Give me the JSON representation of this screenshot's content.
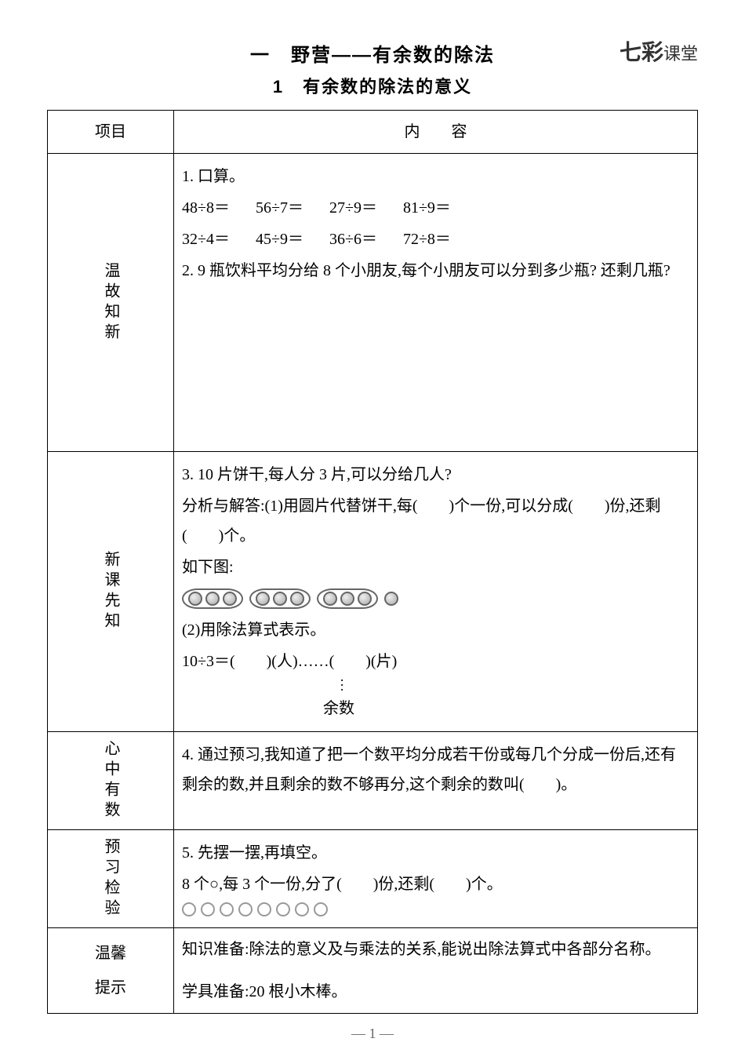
{
  "brand": {
    "prefix": "七彩",
    "suffix": "课堂"
  },
  "title_main": "一　野营——有余数的除法",
  "title_sub": "1　有余数的除法的意义",
  "header": {
    "col1": "项目",
    "col2": "内　　容"
  },
  "sections": {
    "review": {
      "label": "温故知新",
      "p1": "1. 口算。",
      "calc_row1": {
        "a": "48÷8＝",
        "b": "56÷7＝",
        "c": "27÷9＝",
        "d": "81÷9＝"
      },
      "calc_row2": {
        "a": "32÷4＝",
        "b": "45÷9＝",
        "c": "36÷6＝",
        "d": "72÷8＝"
      },
      "p2": "2. 9 瓶饮料平均分给 8 个小朋友,每个小朋友可以分到多少瓶? 还剩几瓶?"
    },
    "new": {
      "label": "新课先知",
      "p3": "3. 10 片饼干,每人分 3 片,可以分给几人?",
      "p3a": "分析与解答:(1)用圆片代替饼干,每(　　)个一份,可以分成(　　)份,还剩(　　)个。",
      "p3b": "如下图:",
      "p3c": "(2)用除法算式表示。",
      "p3d": "10÷3＝(　　)(人)……(　　)(片)",
      "yushu": "余数"
    },
    "know": {
      "label": "心中有数",
      "p4": "4. 通过预习,我知道了把一个数平均分成若干份或每几个分成一份后,还有剩余的数,并且剩余的数不够再分,这个剩余的数叫(　　)。"
    },
    "check": {
      "label": "预习检验",
      "p5": "5. 先摆一摆,再填空。",
      "p5a": "8 个○,每 3 个一份,分了(　　)份,还剩(　　)个。"
    },
    "tip": {
      "label1": "温馨",
      "label2": "提示",
      "t1": "知识准备:除法的意义及与乘法的关系,能说出除法算式中各部分名称。",
      "t2": "学具准备:20 根小木棒。"
    }
  },
  "page_num": "— 1 —",
  "circle_count": 8,
  "group_count": 3,
  "per_group": 3
}
